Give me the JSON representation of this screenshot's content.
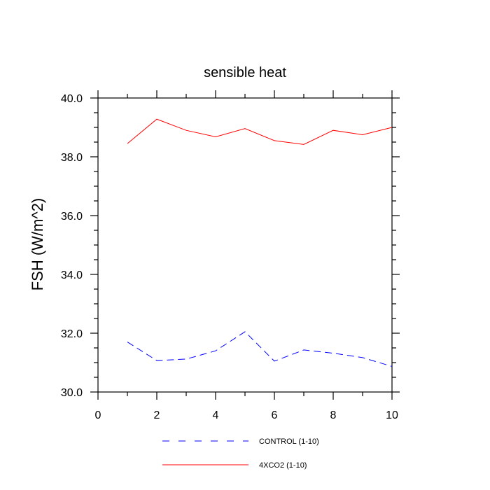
{
  "chart_data": {
    "type": "line",
    "title": "sensible heat",
    "xlabel": "",
    "ylabel": "FSH  (W/m^2)",
    "xlim": [
      0,
      10
    ],
    "ylim": [
      30.0,
      40.0
    ],
    "x_ticks": [
      0,
      2,
      4,
      6,
      8,
      10
    ],
    "x_tick_labels": [
      "0",
      "2",
      "4",
      "6",
      "8",
      "10"
    ],
    "y_ticks": [
      30.0,
      32.0,
      34.0,
      36.0,
      38.0,
      40.0
    ],
    "y_tick_labels": [
      "30.0",
      "32.0",
      "34.0",
      "36.0",
      "38.0",
      "40.0"
    ],
    "grid": false,
    "legend_position": "bottom",
    "x": [
      1,
      2,
      3,
      4,
      5,
      6,
      7,
      8,
      9,
      10
    ],
    "series": [
      {
        "name": "CONTROL (1-10)",
        "color": "#0000ff",
        "dash": "dashed",
        "values": [
          31.7,
          31.07,
          31.12,
          31.4,
          32.05,
          31.05,
          31.43,
          31.32,
          31.17,
          30.87
        ]
      },
      {
        "name": "4XCO2 (1-10)",
        "color": "#ff0000",
        "dash": "solid",
        "values": [
          38.45,
          39.28,
          38.9,
          38.68,
          38.96,
          38.55,
          38.42,
          38.9,
          38.75,
          39.0
        ]
      }
    ]
  }
}
